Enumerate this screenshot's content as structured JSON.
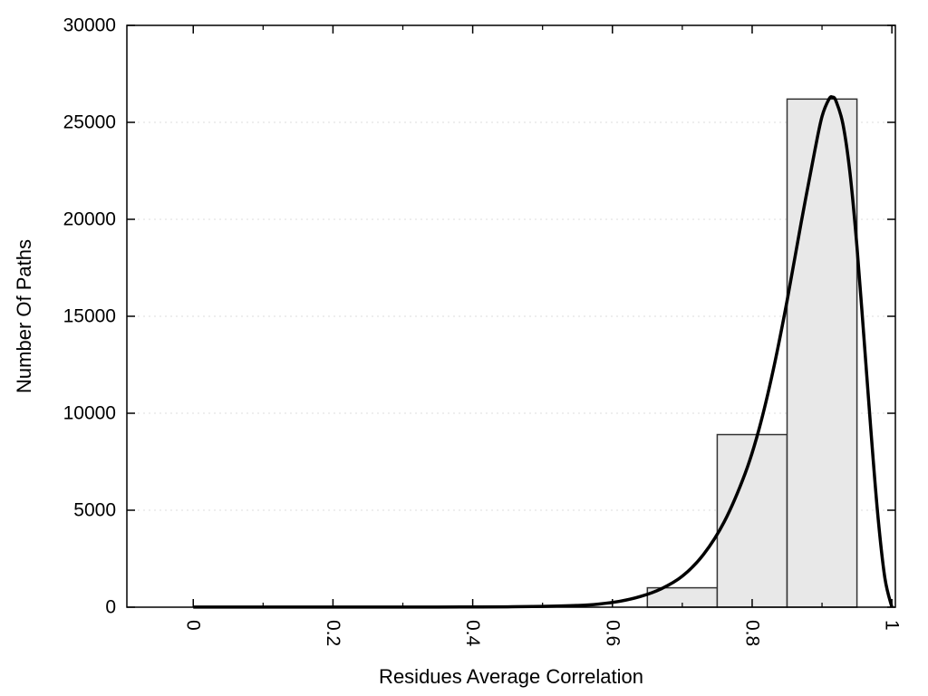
{
  "chart_data": {
    "type": "bar",
    "title": "",
    "xlabel": "Residues Average Correlation",
    "ylabel": "Number Of Paths",
    "xlim": [
      -0.095,
      1.005
    ],
    "ylim": [
      0,
      30000
    ],
    "x_ticks": [
      0,
      0.2,
      0.4,
      0.6,
      0.8,
      1
    ],
    "x_tick_labels": [
      "0",
      "0.2",
      "0.4",
      "0.6",
      "0.8",
      "1"
    ],
    "x_minor_ticks": [
      0.1,
      0.3,
      0.5,
      0.7,
      0.9
    ],
    "y_ticks": [
      0,
      5000,
      10000,
      15000,
      20000,
      25000,
      30000
    ],
    "y_tick_labels": [
      "0",
      "5000",
      "10000",
      "15000",
      "20000",
      "25000",
      "30000"
    ],
    "grid": "horizontal-dotted",
    "legend": "none",
    "bin_width": 0.1,
    "bars": [
      {
        "x0": 0.65,
        "x1": 0.75,
        "value": 1000
      },
      {
        "x0": 0.75,
        "x1": 0.85,
        "value": 8900
      },
      {
        "x0": 0.85,
        "x1": 0.95,
        "value": 26200
      }
    ],
    "series": [
      {
        "name": "density-curve",
        "type": "line",
        "points": [
          [
            0.0,
            5
          ],
          [
            0.05,
            5
          ],
          [
            0.1,
            5
          ],
          [
            0.15,
            5
          ],
          [
            0.2,
            5
          ],
          [
            0.25,
            5
          ],
          [
            0.3,
            6
          ],
          [
            0.35,
            8
          ],
          [
            0.4,
            12
          ],
          [
            0.45,
            20
          ],
          [
            0.5,
            40
          ],
          [
            0.55,
            90
          ],
          [
            0.58,
            160
          ],
          [
            0.61,
            300
          ],
          [
            0.64,
            550
          ],
          [
            0.67,
            950
          ],
          [
            0.7,
            1600
          ],
          [
            0.73,
            2700
          ],
          [
            0.76,
            4400
          ],
          [
            0.79,
            6900
          ],
          [
            0.81,
            9200
          ],
          [
            0.83,
            12200
          ],
          [
            0.85,
            15800
          ],
          [
            0.87,
            19800
          ],
          [
            0.89,
            23600
          ],
          [
            0.9,
            25300
          ],
          [
            0.91,
            26200
          ],
          [
            0.915,
            26300
          ],
          [
            0.92,
            26100
          ],
          [
            0.93,
            24900
          ],
          [
            0.94,
            22400
          ],
          [
            0.95,
            18600
          ],
          [
            0.96,
            13900
          ],
          [
            0.97,
            9100
          ],
          [
            0.98,
            4700
          ],
          [
            0.99,
            1500
          ],
          [
            1.0,
            0
          ]
        ]
      }
    ],
    "colors": {
      "bar_fill": "#e8e8e8",
      "bar_stroke": "#333333",
      "curve": "#000000",
      "grid": "#dcdcdc",
      "axis": "#000000",
      "background": "#ffffff"
    }
  }
}
